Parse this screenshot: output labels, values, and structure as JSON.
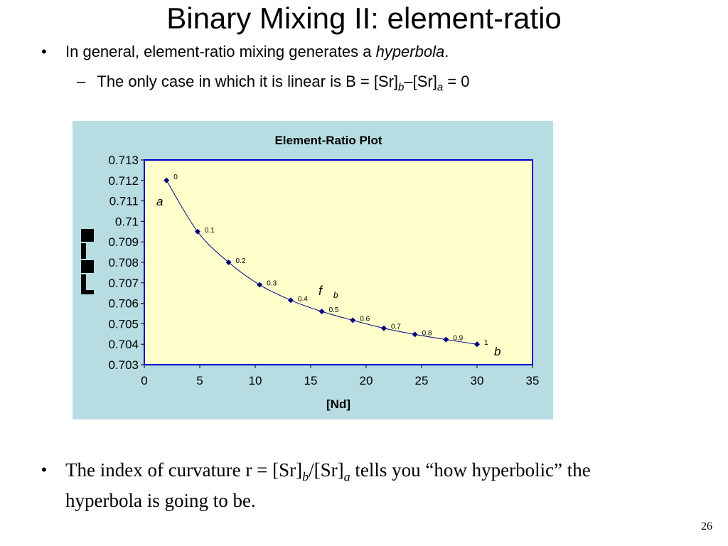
{
  "slide": {
    "title": "Binary Mixing II: element-ratio",
    "bullet1": {
      "symbol": "•",
      "text": "In general, element-ratio mixing generates a ",
      "em": "hyperbola",
      "end": "."
    },
    "sub1": {
      "symbol": "–",
      "text": "The only case in which it is linear is B = [Sr]",
      "sub_b": "b",
      "mid": "–[Sr]",
      "sub_a": "a",
      "end": " = 0"
    },
    "bullet2": {
      "symbol": "•",
      "text": "The index of curvature r = [Sr]",
      "sub_b": "b",
      "slash": "/[Sr]",
      "sub_a": "a",
      "end": " tells you “how hyperbolic” the hyperbola is going to be."
    },
    "page_number": "26"
  },
  "colors": {
    "chart_bg": "#b7dde3",
    "plot_bg": "#ffffcc",
    "plot_border": "#0000cc",
    "marker": "#000080",
    "line": "#000080"
  },
  "chart_data": {
    "type": "scatter",
    "title": "Element-Ratio Plot",
    "xlabel": "[Nd]",
    "ylabel": "",
    "xlim": [
      0,
      35
    ],
    "ylim": [
      0.703,
      0.713
    ],
    "x_ticks": [
      "0",
      "5",
      "10",
      "15",
      "20",
      "25",
      "30",
      "35"
    ],
    "y_ticks": [
      "0.703",
      "0.704",
      "0.705",
      "0.706",
      "0.707",
      "0.708",
      "0.709",
      "0.71",
      "0.711",
      "0.712",
      "0.713"
    ],
    "grid": false,
    "x": [
      2,
      4.8,
      7.6,
      10.4,
      13.2,
      16,
      18.8,
      21.6,
      24.4,
      27.2,
      30
    ],
    "y": [
      0.712,
      0.7095,
      0.708,
      0.7069,
      0.70615,
      0.7056,
      0.70517,
      0.70478,
      0.70448,
      0.70423,
      0.704
    ],
    "point_labels": [
      "0",
      "0.1",
      "0.2",
      "0.3",
      "0.4",
      "0.5",
      "0.6",
      "0.7",
      "0.8",
      "0.9",
      "1"
    ],
    "annotations": {
      "a": "a",
      "b": "b",
      "f": "f",
      "f_sub": "b"
    }
  }
}
